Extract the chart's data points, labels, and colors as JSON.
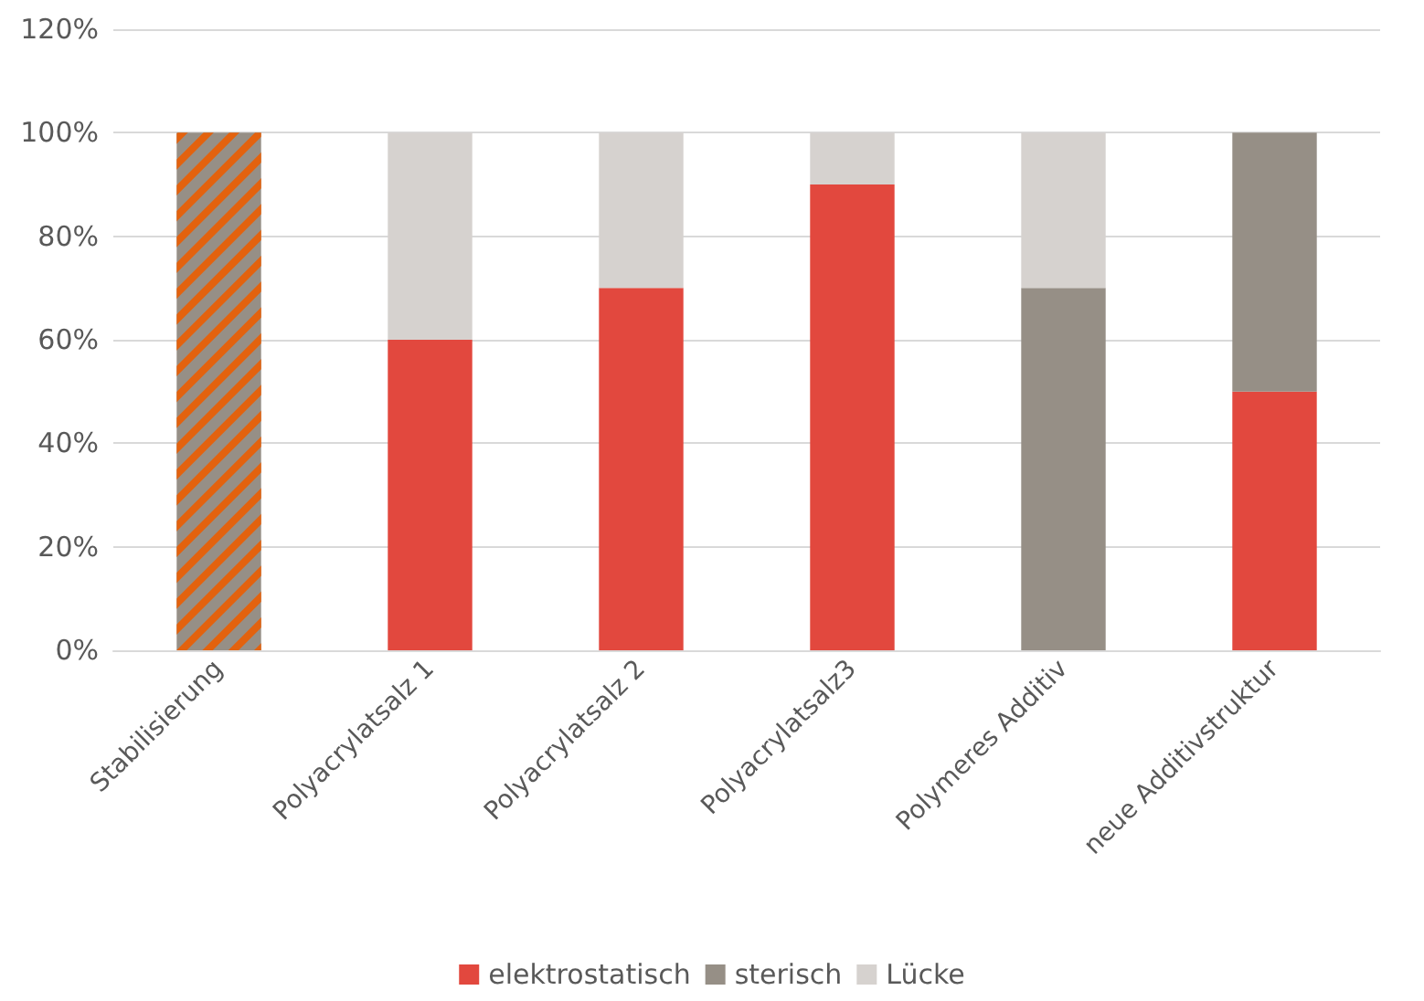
{
  "chart_data": {
    "type": "bar",
    "stacked": true,
    "categories": [
      "Stabilisierung",
      "Polyacrylatsalz 1",
      "Polyacrylatsalz 2",
      "Polyacrylatsalz3",
      "Polymeres Additiv",
      "neue Additivstruktur"
    ],
    "series": [
      {
        "color": "#968f86",
        "values": [
          100,
          null,
          null,
          null,
          null,
          null
        ]
      },
      {
        "name": "elektrostatisch",
        "color": "#e2483e",
        "values": [
          null,
          60,
          70,
          90,
          null,
          50
        ]
      },
      {
        "name": "sterisch",
        "color": "#968f86",
        "values": [
          null,
          null,
          null,
          null,
          70,
          50
        ]
      },
      {
        "name": "Lücke",
        "color": "#d6d2cf",
        "values": [
          null,
          40,
          30,
          10,
          30,
          null
        ]
      }
    ],
    "ylim": [
      0,
      120
    ],
    "yticks": [
      {
        "value": 0,
        "label": "0%"
      },
      {
        "value": 20,
        "label": "20%"
      },
      {
        "value": 40,
        "label": "40%"
      },
      {
        "value": 60,
        "label": "60%"
      },
      {
        "value": 80,
        "label": "80%"
      },
      {
        "value": 100,
        "label": "100%"
      },
      {
        "value": 120,
        "label": "120%"
      }
    ],
    "grid": "y",
    "legend": "bottom"
  }
}
